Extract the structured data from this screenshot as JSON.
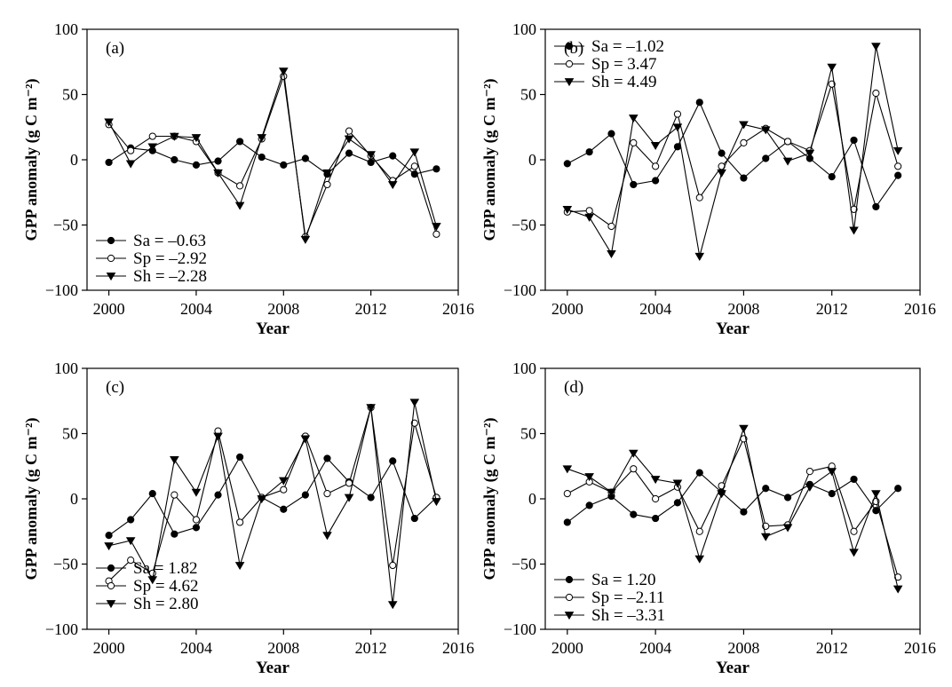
{
  "figure": {
    "panel_count": 4
  },
  "chart_data": [
    {
      "type": "line",
      "panel_label": "(a)",
      "xlabel": "Year",
      "ylabel": "GPP anomaly (g C m⁻²)",
      "xlim": [
        1999,
        2016
      ],
      "ylim": [
        -100,
        100
      ],
      "xticks": [
        2000,
        2004,
        2008,
        2012,
        2016
      ],
      "yticks": [
        -100,
        -50,
        0,
        50,
        100
      ],
      "legend_position": "bottom-left",
      "x": [
        2000,
        2001,
        2002,
        2003,
        2004,
        2005,
        2006,
        2007,
        2008,
        2009,
        2010,
        2011,
        2012,
        2013,
        2014,
        2015
      ],
      "series": [
        {
          "name": "Sa = –0.63",
          "marker": "filled-circle",
          "values": [
            -2,
            9,
            7,
            0,
            -4,
            -1,
            14,
            2,
            -4,
            1,
            -11,
            5,
            -2,
            3,
            -11,
            -7
          ]
        },
        {
          "name": "Sp = –2.92",
          "marker": "open-circle",
          "values": [
            27,
            7,
            18,
            18,
            14,
            -10,
            -20,
            16,
            64,
            -59,
            -19,
            22,
            3,
            -16,
            -5,
            -57
          ]
        },
        {
          "name": "Sh = –2.28",
          "marker": "filled-triangle-down",
          "values": [
            29,
            -3,
            10,
            18,
            17,
            -10,
            -35,
            17,
            68,
            -61,
            -10,
            16,
            4,
            -19,
            6,
            -51
          ]
        }
      ]
    },
    {
      "type": "line",
      "panel_label": "(b)",
      "xlabel": "Year",
      "ylabel": "GPP anomaly (g C m⁻²)",
      "xlim": [
        1999,
        2016
      ],
      "ylim": [
        -100,
        100
      ],
      "xticks": [
        2000,
        2004,
        2008,
        2012,
        2016
      ],
      "yticks": [
        -100,
        -50,
        0,
        50,
        100
      ],
      "legend_position": "top-left",
      "x": [
        2000,
        2001,
        2002,
        2003,
        2004,
        2005,
        2006,
        2007,
        2008,
        2009,
        2010,
        2011,
        2012,
        2013,
        2014,
        2015
      ],
      "series": [
        {
          "name": "Sa = –1.02",
          "marker": "filled-circle",
          "values": [
            -3,
            6,
            20,
            -19,
            -16,
            10,
            44,
            5,
            -14,
            1,
            14,
            1,
            -13,
            15,
            -36,
            -12
          ]
        },
        {
          "name": "Sp = 3.47",
          "marker": "open-circle",
          "values": [
            -40,
            -39,
            -51,
            13,
            -5,
            35,
            -29,
            -5,
            13,
            24,
            14,
            7,
            58,
            -38,
            51,
            -5
          ]
        },
        {
          "name": "Sh = 4.49",
          "marker": "filled-triangle-down",
          "values": [
            -38,
            -44,
            -72,
            32,
            11,
            25,
            -74,
            -10,
            27,
            23,
            -1,
            5,
            71,
            -54,
            87,
            7
          ]
        }
      ]
    },
    {
      "type": "line",
      "panel_label": "(c)",
      "xlabel": "Year",
      "ylabel": "GPP anomaly (g C m⁻²)",
      "xlim": [
        1999,
        2016
      ],
      "ylim": [
        -100,
        100
      ],
      "xticks": [
        2000,
        2004,
        2008,
        2012,
        2016
      ],
      "yticks": [
        -100,
        -50,
        0,
        50,
        100
      ],
      "legend_position": "bottom-left",
      "x": [
        2000,
        2001,
        2002,
        2003,
        2004,
        2005,
        2006,
        2007,
        2008,
        2009,
        2010,
        2011,
        2012,
        2013,
        2014,
        2015
      ],
      "series": [
        {
          "name": "Sa = 1.82",
          "marker": "filled-circle",
          "values": [
            -28,
            -16,
            4,
            -27,
            -22,
            3,
            32,
            1,
            -8,
            3,
            31,
            13,
            1,
            29,
            -15,
            1
          ]
        },
        {
          "name": "Sp = 4.62",
          "marker": "open-circle",
          "values": [
            -63,
            -47,
            -57,
            3,
            -16,
            52,
            -18,
            1,
            7,
            48,
            4,
            12,
            70,
            -51,
            58,
            1
          ]
        },
        {
          "name": "Sh = 2.80",
          "marker": "filled-triangle-down",
          "values": [
            -36,
            -32,
            -62,
            30,
            5,
            48,
            -51,
            0,
            14,
            46,
            -28,
            1,
            70,
            -81,
            74,
            -2
          ]
        }
      ]
    },
    {
      "type": "line",
      "panel_label": "(d)",
      "xlabel": "Year",
      "ylabel": "GPP anomaly (g C m⁻²)",
      "xlim": [
        1999,
        2016
      ],
      "ylim": [
        -100,
        100
      ],
      "xticks": [
        2000,
        2004,
        2008,
        2012,
        2016
      ],
      "yticks": [
        -100,
        -50,
        0,
        50,
        100
      ],
      "legend_position": "bottom-left",
      "x": [
        2000,
        2001,
        2002,
        2003,
        2004,
        2005,
        2006,
        2007,
        2008,
        2009,
        2010,
        2011,
        2012,
        2013,
        2014,
        2015
      ],
      "series": [
        {
          "name": "Sa = 1.20",
          "marker": "filled-circle",
          "values": [
            -18,
            -5,
            2,
            -12,
            -15,
            -3,
            20,
            5,
            -10,
            8,
            1,
            11,
            4,
            15,
            -9,
            8
          ]
        },
        {
          "name": "Sp = –2.11",
          "marker": "open-circle",
          "values": [
            4,
            13,
            5,
            23,
            0,
            9,
            -25,
            10,
            46,
            -21,
            -20,
            21,
            25,
            -25,
            -2,
            -60
          ]
        },
        {
          "name": "Sh = –3.31",
          "marker": "filled-triangle-down",
          "values": [
            23,
            17,
            5,
            35,
            15,
            12,
            -46,
            4,
            54,
            -29,
            -22,
            9,
            21,
            -41,
            4,
            -69
          ]
        }
      ]
    }
  ]
}
